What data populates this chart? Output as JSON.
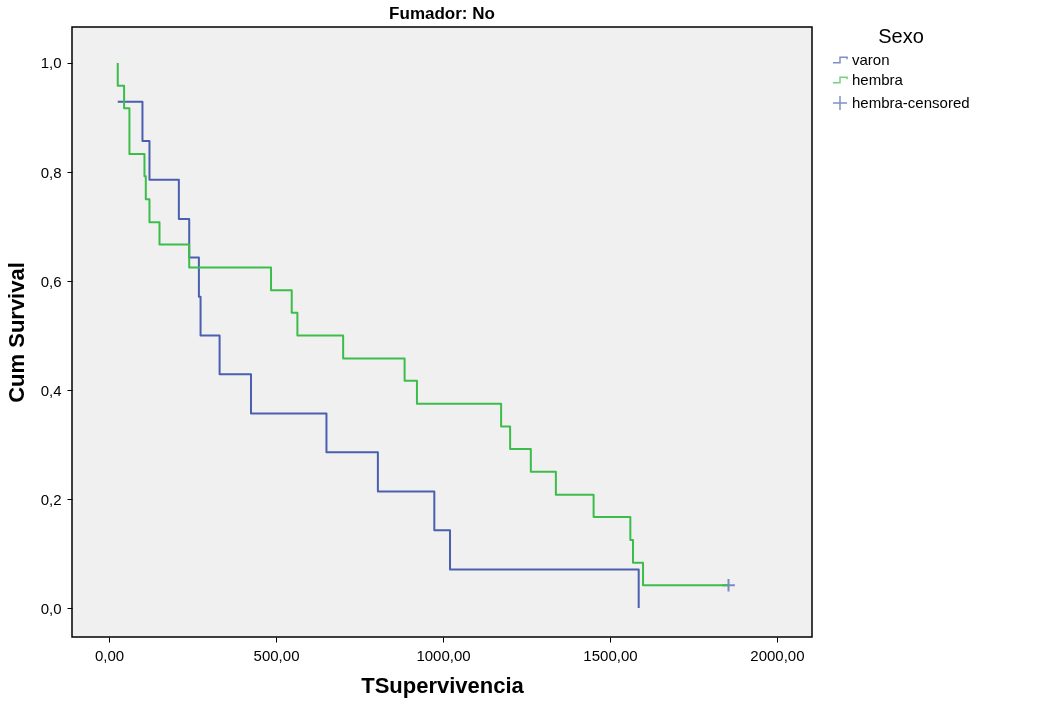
{
  "chart_data": {
    "type": "step",
    "title": "Fumador: No",
    "xlabel": "TSupervivencia",
    "ylabel": "Cum Survival",
    "legend_title": "Sexo",
    "legend": "right",
    "grid": false,
    "xlim": [
      -111,
      2105
    ],
    "ylim": [
      -0.053,
      1.066
    ],
    "xticks": [
      {
        "value": 0,
        "label": "0,00"
      },
      {
        "value": 500,
        "label": "500,00"
      },
      {
        "value": 1000,
        "label": "1000,00"
      },
      {
        "value": 1500,
        "label": "1500,00"
      },
      {
        "value": 2000,
        "label": "2000,00"
      }
    ],
    "yticks": [
      {
        "value": 0,
        "label": "0,0"
      },
      {
        "value": 0.2,
        "label": "0,2"
      },
      {
        "value": 0.4,
        "label": "0,4"
      },
      {
        "value": 0.6,
        "label": "0,6"
      },
      {
        "value": 0.8,
        "label": "0,8"
      },
      {
        "value": 1,
        "label": "1,0"
      }
    ],
    "series": [
      {
        "name": "varon",
        "color": "#4a5fb0",
        "marker": "none",
        "x": [
          26,
          100,
          121,
          209,
          240,
          269,
          274,
          331,
          425,
          651,
          805,
          974,
          1021,
          1586
        ],
        "values": [
          0.929,
          0.857,
          0.786,
          0.714,
          0.643,
          0.571,
          0.5,
          0.429,
          0.357,
          0.286,
          0.214,
          0.143,
          0.071,
          0.0
        ]
      },
      {
        "name": "hembra",
        "color": "#3cbd4a",
        "marker": "none",
        "x": [
          26,
          26,
          45,
          61,
          106,
          110,
          121,
          151,
          240,
          485,
          547,
          564,
          701,
          885,
          922,
          1174,
          1201,
          1263,
          1338,
          1451,
          1561,
          1569,
          1599,
          1855
        ],
        "values": [
          1.0,
          0.958,
          0.917,
          0.833,
          0.792,
          0.75,
          0.708,
          0.667,
          0.625,
          0.583,
          0.542,
          0.5,
          0.458,
          0.417,
          0.375,
          0.333,
          0.292,
          0.25,
          0.208,
          0.167,
          0.125,
          0.083,
          0.042,
          0.042
        ]
      },
      {
        "name": "hembra-censored",
        "type": "scatter",
        "color": "#4a5fb0",
        "marker": "cross",
        "x": [
          1855
        ],
        "values": [
          0.042
        ]
      }
    ]
  }
}
